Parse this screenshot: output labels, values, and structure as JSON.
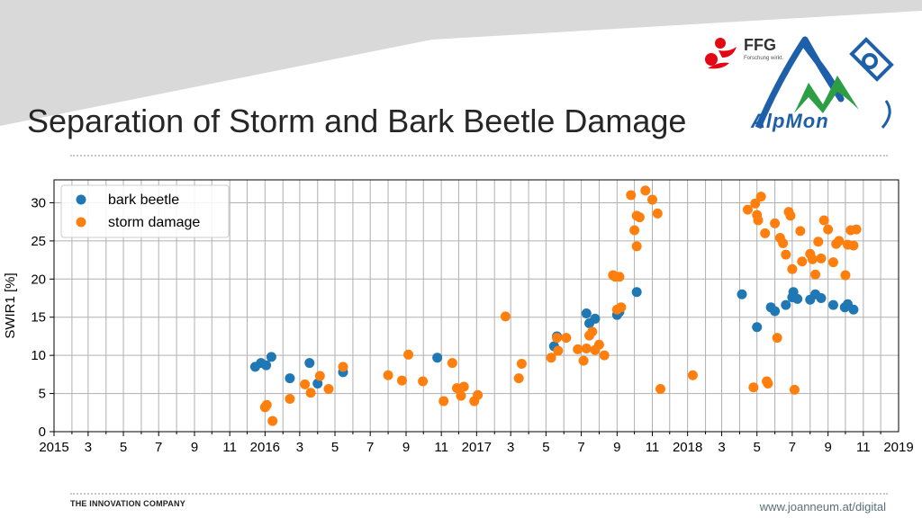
{
  "slide": {
    "title": "Separation of Storm and Bark Beetle Damage",
    "footer_left": "THE INNOVATION COMPANY",
    "footer_right": "www.joanneum.at/digital"
  },
  "logos": {
    "ffg_name": "FFG",
    "ffg_tagline": "Forschung wirkt.",
    "alpmon_name": "AlpMon"
  },
  "colors": {
    "bark_beetle": "#1f77b4",
    "storm_damage": "#ff7f0e",
    "ffg_red": "#e30613",
    "alpmon_blue": "#1d5fa8",
    "alpmon_green": "#2e9e45"
  },
  "chart_data": {
    "type": "scatter",
    "ylabel": "SWIR1 [%]",
    "ylim": [
      0,
      33
    ],
    "yticks": [
      0,
      5,
      10,
      15,
      20,
      25,
      30
    ],
    "xlim": [
      "2015-01-01",
      "2019-01-01"
    ],
    "xtick_labels": [
      "2015",
      "3",
      "5",
      "7",
      "9",
      "11",
      "2016",
      "3",
      "5",
      "7",
      "9",
      "11",
      "2017",
      "3",
      "5",
      "7",
      "9",
      "11",
      "2018",
      "3",
      "5",
      "7",
      "9",
      "11",
      "2019"
    ],
    "grid": true,
    "legend": "top-left",
    "series": [
      {
        "name": "bark beetle",
        "color": "#1f77b4",
        "points": [
          [
            "2015-12-15",
            8.5
          ],
          [
            "2015-12-25",
            9.0
          ],
          [
            "2016-01-03",
            8.7
          ],
          [
            "2016-01-12",
            9.8
          ],
          [
            "2016-02-13",
            7.0
          ],
          [
            "2016-03-18",
            9.0
          ],
          [
            "2016-04-01",
            6.3
          ],
          [
            "2016-05-15",
            7.8
          ],
          [
            "2016-10-25",
            9.7
          ],
          [
            "2017-05-15",
            11.2
          ],
          [
            "2017-05-20",
            12.5
          ],
          [
            "2017-07-10",
            15.5
          ],
          [
            "2017-07-15",
            14.2
          ],
          [
            "2017-07-25",
            14.8
          ],
          [
            "2017-09-01",
            15.3
          ],
          [
            "2017-09-05",
            15.7
          ],
          [
            "2017-10-05",
            18.3
          ],
          [
            "2018-04-05",
            18.0
          ],
          [
            "2018-05-01",
            13.7
          ],
          [
            "2018-05-25",
            16.3
          ],
          [
            "2018-06-01",
            15.8
          ],
          [
            "2018-06-20",
            16.6
          ],
          [
            "2018-07-01",
            17.6
          ],
          [
            "2018-07-03",
            18.3
          ],
          [
            "2018-07-10",
            17.4
          ],
          [
            "2018-08-01",
            17.3
          ],
          [
            "2018-08-10",
            18.0
          ],
          [
            "2018-08-20",
            17.5
          ],
          [
            "2018-09-10",
            16.6
          ],
          [
            "2018-09-30",
            16.3
          ],
          [
            "2018-10-05",
            16.7
          ],
          [
            "2018-10-15",
            16.0
          ]
        ]
      },
      {
        "name": "storm damage",
        "color": "#ff7f0e",
        "points": [
          [
            "2016-01-01",
            3.2
          ],
          [
            "2016-01-04",
            3.5
          ],
          [
            "2016-01-14",
            1.4
          ],
          [
            "2016-02-13",
            4.3
          ],
          [
            "2016-03-10",
            6.2
          ],
          [
            "2016-03-20",
            5.1
          ],
          [
            "2016-04-05",
            7.3
          ],
          [
            "2016-04-20",
            5.6
          ],
          [
            "2016-05-15",
            8.5
          ],
          [
            "2016-08-01",
            7.4
          ],
          [
            "2016-08-25",
            6.7
          ],
          [
            "2016-09-05",
            10.1
          ],
          [
            "2016-09-30",
            6.6
          ],
          [
            "2016-11-05",
            4.0
          ],
          [
            "2016-11-20",
            9.0
          ],
          [
            "2016-11-28",
            5.7
          ],
          [
            "2016-12-05",
            4.7
          ],
          [
            "2016-12-10",
            5.9
          ],
          [
            "2016-12-28",
            4.0
          ],
          [
            "2017-01-03",
            4.8
          ],
          [
            "2017-02-20",
            15.1
          ],
          [
            "2017-03-15",
            7.0
          ],
          [
            "2017-03-20",
            8.9
          ],
          [
            "2017-05-10",
            9.7
          ],
          [
            "2017-05-20",
            12.3
          ],
          [
            "2017-05-22",
            10.6
          ],
          [
            "2017-06-05",
            12.3
          ],
          [
            "2017-06-25",
            10.8
          ],
          [
            "2017-07-05",
            9.3
          ],
          [
            "2017-07-10",
            10.9
          ],
          [
            "2017-07-15",
            12.6
          ],
          [
            "2017-07-20",
            13.1
          ],
          [
            "2017-07-25",
            10.7
          ],
          [
            "2017-08-01",
            11.4
          ],
          [
            "2017-08-10",
            10.0
          ],
          [
            "2017-08-25",
            20.5
          ],
          [
            "2017-08-29",
            20.3
          ],
          [
            "2017-09-01",
            16.0
          ],
          [
            "2017-09-05",
            20.3
          ],
          [
            "2017-09-08",
            16.3
          ],
          [
            "2017-09-25",
            31.0
          ],
          [
            "2017-10-01",
            26.4
          ],
          [
            "2017-10-05",
            28.3
          ],
          [
            "2017-10-05",
            24.3
          ],
          [
            "2017-10-10",
            28.1
          ],
          [
            "2017-10-20",
            31.6
          ],
          [
            "2017-11-01",
            30.4
          ],
          [
            "2017-11-10",
            28.6
          ],
          [
            "2017-11-15",
            5.6
          ],
          [
            "2018-01-10",
            7.4
          ],
          [
            "2018-04-15",
            29.1
          ],
          [
            "2018-04-25",
            5.8
          ],
          [
            "2018-04-28",
            29.9
          ],
          [
            "2018-05-01",
            28.4
          ],
          [
            "2018-05-03",
            27.7
          ],
          [
            "2018-05-08",
            30.8
          ],
          [
            "2018-05-15",
            26.0
          ],
          [
            "2018-05-18",
            6.6
          ],
          [
            "2018-05-20",
            6.3
          ],
          [
            "2018-06-01",
            27.3
          ],
          [
            "2018-06-05",
            12.3
          ],
          [
            "2018-06-10",
            25.4
          ],
          [
            "2018-06-15",
            24.7
          ],
          [
            "2018-06-20",
            23.2
          ],
          [
            "2018-06-25",
            28.8
          ],
          [
            "2018-06-28",
            28.3
          ],
          [
            "2018-07-01",
            21.3
          ],
          [
            "2018-07-05",
            5.5
          ],
          [
            "2018-07-15",
            26.3
          ],
          [
            "2018-07-18",
            22.3
          ],
          [
            "2018-08-01",
            23.3
          ],
          [
            "2018-08-05",
            22.6
          ],
          [
            "2018-08-10",
            20.6
          ],
          [
            "2018-08-15",
            24.9
          ],
          [
            "2018-08-20",
            22.7
          ],
          [
            "2018-08-25",
            27.7
          ],
          [
            "2018-09-01",
            26.5
          ],
          [
            "2018-09-10",
            22.2
          ],
          [
            "2018-09-15",
            24.6
          ],
          [
            "2018-09-20",
            25.0
          ],
          [
            "2018-10-01",
            20.5
          ],
          [
            "2018-10-05",
            24.5
          ],
          [
            "2018-10-10",
            26.4
          ],
          [
            "2018-10-15",
            24.4
          ],
          [
            "2018-10-20",
            26.5
          ]
        ]
      }
    ]
  }
}
